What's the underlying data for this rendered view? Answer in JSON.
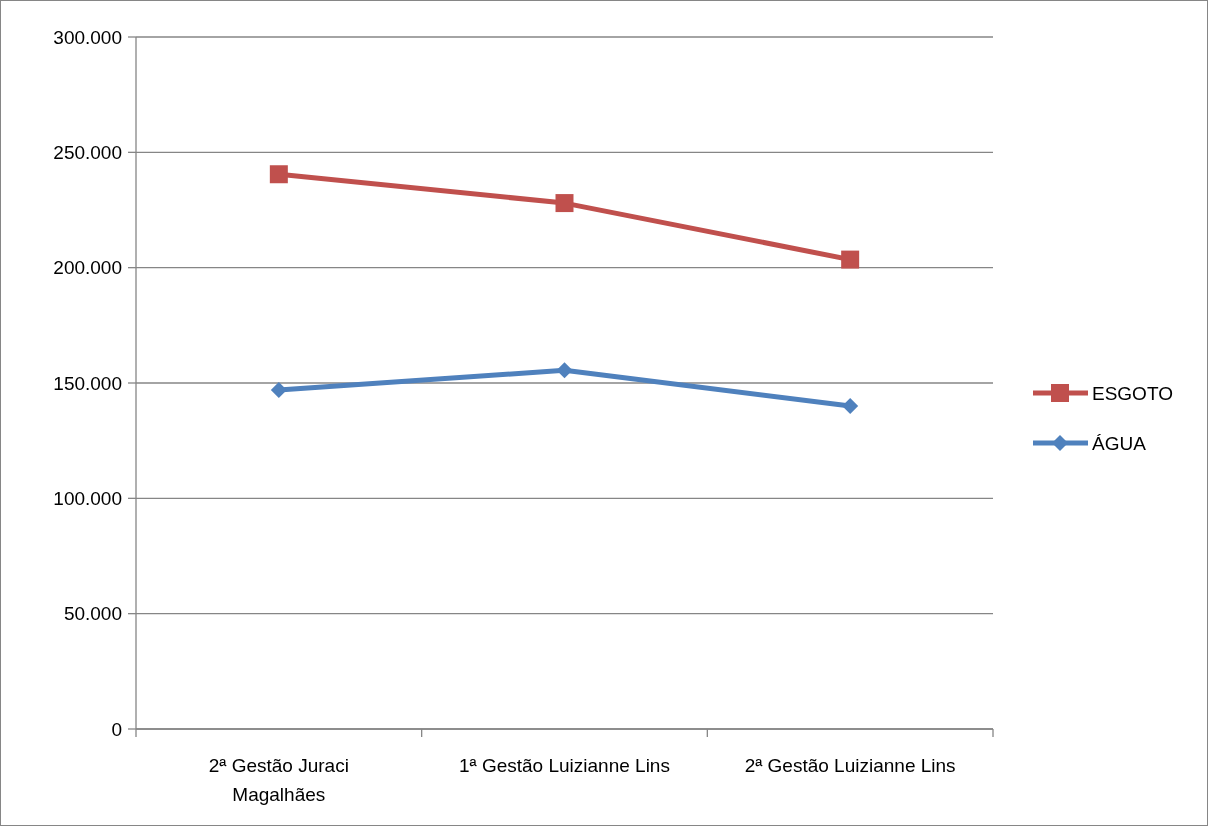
{
  "chart_data": {
    "type": "line",
    "categories": [
      "2ª Gestão Juraci Magalhães",
      "1ª Gestão Luizianne Lins",
      "2ª Gestão Luizianne Lins"
    ],
    "series": [
      {
        "name": "ESGOTO",
        "color": "#c0504d",
        "marker": "square",
        "values": [
          240500,
          228000,
          203500
        ]
      },
      {
        "name": "ÁGUA",
        "color": "#4f81bd",
        "marker": "diamond",
        "values": [
          147000,
          155500,
          140000
        ]
      }
    ],
    "ylim": [
      0,
      300000
    ],
    "yticks": [
      {
        "value": 0,
        "label": "0"
      },
      {
        "value": 50000,
        "label": "50.000"
      },
      {
        "value": 100000,
        "label": "100.000"
      },
      {
        "value": 150000,
        "label": "150.000"
      },
      {
        "value": 200000,
        "label": "200.000"
      },
      {
        "value": 250000,
        "label": "250.000"
      },
      {
        "value": 300000,
        "label": "300.000"
      }
    ],
    "grid": "y",
    "legend": "right",
    "line_style": "solid"
  }
}
